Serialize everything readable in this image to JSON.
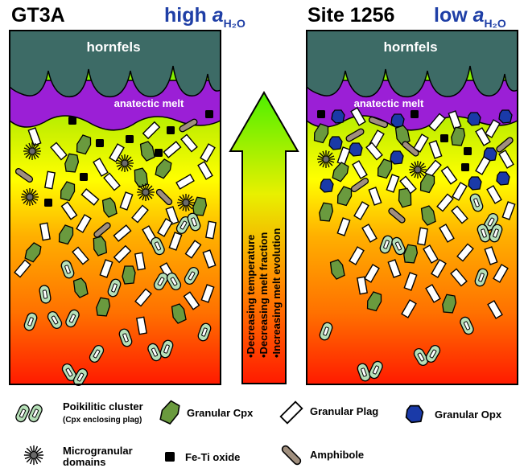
{
  "left_panel": {
    "title": "GT3A",
    "water_prefix": "high ",
    "water_symbol": "a",
    "water_sub": "H₂O",
    "hornfels_label": "hornfels",
    "melt_label": "anatectic melt"
  },
  "right_panel": {
    "title": "Site 1256",
    "water_prefix": "low ",
    "water_symbol": "a",
    "water_sub": "H₂O",
    "hornfels_label": "hornfels",
    "melt_label": "anatectic melt"
  },
  "arrow": {
    "lines": [
      "•Decreasing temperature",
      "•Decreasing melt fraction",
      "•Increasing melt evolution"
    ]
  },
  "legend": {
    "poikilitic_title": "Poikilitic cluster",
    "poikilitic_sub": "(Cpx enclosing plag)",
    "granular_cpx": "Granular Cpx",
    "granular_plag": "Granular Plag",
    "granular_opx": "Granular Opx",
    "micro_line1": "Microgranular",
    "micro_line2": "domains",
    "fe_ti_oxide": "Fe-Ti oxide",
    "amphibole": "Amphibole"
  },
  "colors": {
    "hornfels": "#3d6b66",
    "melt": "#9b1fd6",
    "cpx": "#6a9a3e",
    "opx": "#1a3aa8",
    "amphibole": "#a08f7e",
    "poik": "#b6e0b8",
    "title_blue": "#1f3fa6"
  }
}
